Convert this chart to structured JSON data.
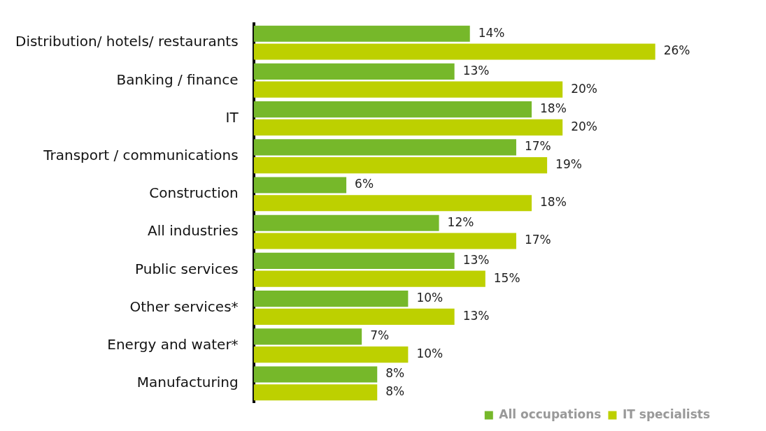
{
  "chart_data": {
    "type": "bar",
    "orientation": "horizontal",
    "categories": [
      "Distribution/ hotels/ restaurants",
      "Banking / finance",
      "IT",
      "Transport / communications",
      "Construction",
      "All industries",
      "Public services",
      "Other services*",
      "Energy and water*",
      "Manufacturing"
    ],
    "series": [
      {
        "name": "All occupations",
        "color": "#76b82a",
        "values": [
          14,
          13,
          18,
          17,
          6,
          12,
          13,
          10,
          7,
          8
        ],
        "value_labels": [
          "14%",
          "13%",
          "18%",
          "17%",
          "6%",
          "12%",
          "13%",
          "10%",
          "7%",
          "8%"
        ]
      },
      {
        "name": "IT specialists",
        "color": "#bdd000",
        "values": [
          26,
          20,
          20,
          19,
          18,
          17,
          15,
          13,
          10,
          8
        ],
        "value_labels": [
          "26%",
          "20%",
          "20%",
          "19%",
          "18%",
          "17%",
          "15%",
          "13%",
          "10%",
          "8%"
        ]
      }
    ],
    "tick_labels": "y",
    "legend": "bottom right"
  }
}
